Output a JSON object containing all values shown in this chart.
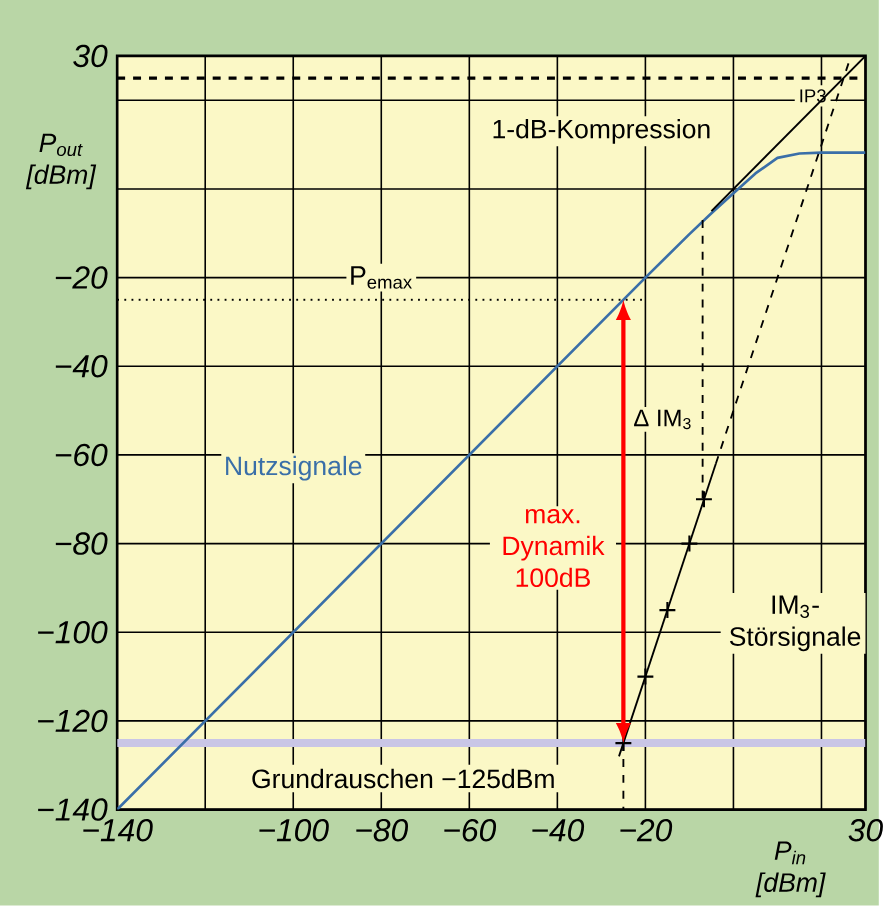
{
  "chart_data": {
    "type": "line",
    "xlabel": "P$_{in}$ [dBm]",
    "ylabel": "P$_{out}$ [dBm]",
    "xlim": [
      -140,
      30
    ],
    "ylim": [
      -140,
      30
    ],
    "xticks": [
      {
        "value": -140,
        "label": "−140"
      },
      {
        "value": -120,
        "label": null
      },
      {
        "value": -100,
        "label": "−100"
      },
      {
        "value": -80,
        "label": "−80"
      },
      {
        "value": -60,
        "label": "−60"
      },
      {
        "value": -40,
        "label": "−40"
      },
      {
        "value": -20,
        "label": "−20"
      },
      {
        "value": 0,
        "label": null
      },
      {
        "value": 20,
        "label": null
      },
      30
    ],
    "yticks": [
      {
        "value": -140,
        "label": "−140"
      },
      {
        "value": -120,
        "label": "−120"
      },
      {
        "value": -100,
        "label": "−100"
      },
      {
        "value": -80,
        "label": "−80"
      },
      {
        "value": -60,
        "label": "−60"
      },
      {
        "value": -40,
        "label": "−40"
      },
      {
        "value": -20,
        "label": "−20"
      },
      {
        "value": 0,
        "label": null
      },
      {
        "value": 20,
        "label": null
      },
      30
    ],
    "grid": true,
    "series": [
      {
        "name": "Nutzsignale",
        "color": "#3a6fa8",
        "x": [
          -140,
          -20,
          -10,
          -5,
          0,
          5,
          10,
          15,
          20,
          30
        ],
        "values": [
          -140,
          -20,
          -10.2,
          -5.5,
          -1,
          3.5,
          7,
          8,
          8.2,
          8.2
        ]
      },
      {
        "color": "#000000",
        "x": [
          -5,
          30
        ],
        "values": [
          -5,
          30
        ]
      },
      {
        "name": "IM$_{3}$-Störsignale",
        "color": "#000000",
        "x": [
          -26,
          -4
        ],
        "values": [
          -128,
          -62
        ]
      },
      {
        "color": "#000000",
        "line_style": "dashed",
        "x": [
          -4,
          26.7
        ],
        "values": [
          -62,
          30
        ]
      },
      {
        "type": "scatter",
        "marker": "cross",
        "color": "#000000",
        "x": [
          -25,
          -20,
          -15,
          -10,
          -6.7
        ],
        "values": [
          -125,
          -110,
          -95,
          -80,
          -70
        ]
      },
      {
        "color": "#000000",
        "line_style": "dotted",
        "x": [
          -140,
          -20
        ],
        "values": [
          -25,
          -25
        ]
      },
      {
        "color": "#000000",
        "line_style": "dashed",
        "x": [
          -7,
          -7
        ],
        "values": [
          -7,
          -70
        ]
      },
      {
        "color": "#000000",
        "line_style": "dashed",
        "x": [
          -25,
          -25
        ],
        "values": [
          -125,
          -140
        ]
      }
    ],
    "ref_lines": [
      {
        "axis": "y",
        "value": 25,
        "label": "IP3",
        "color": "#000000",
        "line_style": "dashed"
      },
      {
        "axis": "y",
        "value": -125,
        "label": "Grundrauschen −125dBm",
        "color": "#c9c6e6"
      }
    ],
    "annotations": [
      "1-dB-Kompression",
      "P$_{emax}$",
      "Δ IM$_{3}$",
      "max. Dynamik 100dB"
    ]
  }
}
